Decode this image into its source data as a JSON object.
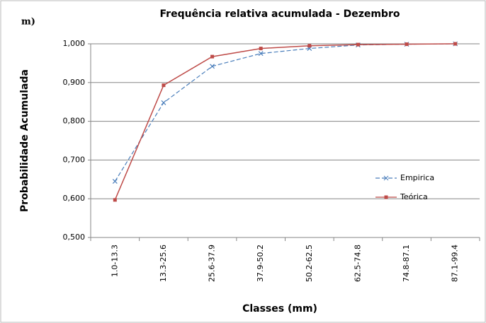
{
  "chart_data": {
    "type": "line",
    "title": "Frequência relativa acumulada - Dezembro",
    "panel_label": "m)",
    "x_label": "Classes (mm)",
    "y_label": "Probabilidade  Acumulada",
    "categories": [
      "1.0-13.3",
      "13.3-25.6",
      "25.6-37.9",
      "37.9-50.2",
      "50.2-62.5",
      "62.5-74.8",
      "74.8-87.1",
      "87.1-99.4"
    ],
    "series": [
      {
        "name": "Empirica",
        "color": "#4a7ebb",
        "dashed": true,
        "marker": "x",
        "values": [
          0.645,
          0.848,
          0.942,
          0.975,
          0.988,
          0.997,
          0.999,
          1.0
        ]
      },
      {
        "name": "Teórica",
        "color": "#be4b48",
        "dashed": false,
        "marker": "square",
        "values": [
          0.597,
          0.893,
          0.967,
          0.988,
          0.995,
          0.998,
          0.999,
          1.0
        ]
      }
    ],
    "ylim": [
      0.5,
      1.0
    ],
    "yticks": [
      {
        "value": 0.5,
        "label": "0,500"
      },
      {
        "value": 0.6,
        "label": "0,600"
      },
      {
        "value": 0.7,
        "label": "0,700"
      },
      {
        "value": 0.8,
        "label": "0,800"
      },
      {
        "value": 0.9,
        "label": "0,900"
      },
      {
        "value": 1.0,
        "label": "1,000"
      }
    ],
    "grid": true,
    "legend": "right"
  }
}
